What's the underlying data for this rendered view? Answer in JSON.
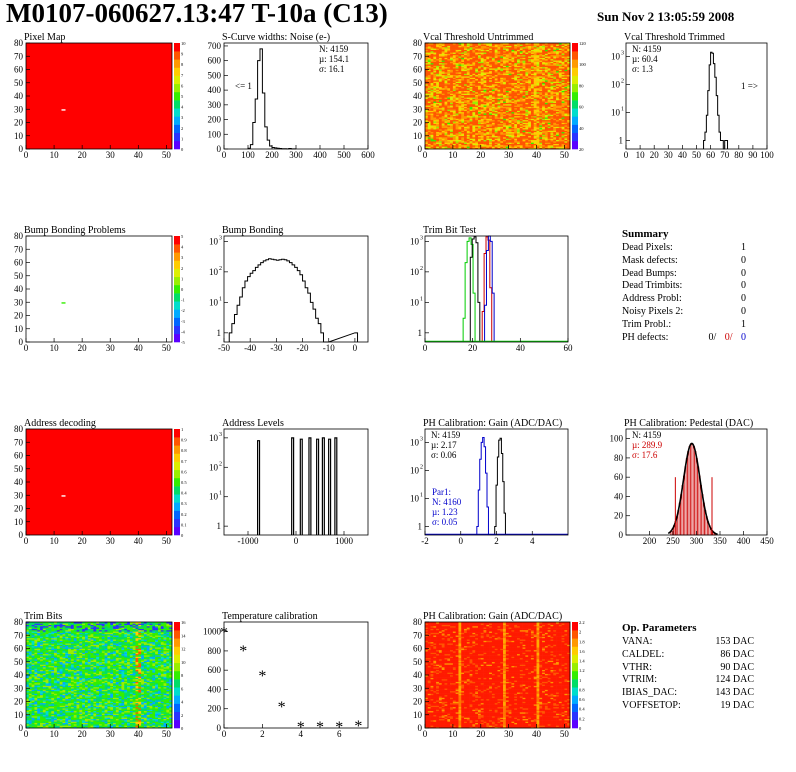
{
  "header": {
    "title": "M0107-060627.13:47 T-10a (C13)",
    "date": "Sun Nov  2 13:05:59 2008"
  },
  "colors": {
    "frame": "#000000",
    "red_text": "#cc0000",
    "blue_text": "#0000cc",
    "green_line": "#00cc00",
    "map_red": "#ff0000"
  },
  "chart_data": [
    {
      "id": "pixel_map",
      "type": "heatmap",
      "title": "Pixel Map",
      "xlim": [
        0,
        52
      ],
      "ylim": [
        0,
        80
      ],
      "xticks": [
        0,
        10,
        20,
        30,
        40,
        50
      ],
      "yticks": [
        0,
        10,
        20,
        30,
        40,
        50,
        60,
        70,
        80
      ],
      "colorbar_ticks": [
        0,
        1,
        2,
        3,
        4,
        5,
        6,
        7,
        8,
        9,
        10
      ],
      "fill_value": 10,
      "fill_color": "#ff0000",
      "special_pixels": [
        {
          "col": 13,
          "row": 29,
          "value": 0
        }
      ]
    },
    {
      "id": "scurve_widths",
      "type": "bar",
      "title": "S-Curve widths: Noise (e-)",
      "xlim": [
        0,
        600
      ],
      "ylim": [
        0,
        720
      ],
      "xticks": [
        0,
        100,
        200,
        300,
        400,
        500,
        600
      ],
      "yticks": [
        0,
        100,
        200,
        300,
        400,
        500,
        600,
        700
      ],
      "stats": {
        "N": "N: 4159",
        "mu": "µ: 154.1",
        "sigma": "σ: 16.1"
      },
      "underflow_label": "<= 1",
      "bin_width": 10,
      "bins_x": [
        100,
        110,
        120,
        130,
        140,
        150,
        160,
        170,
        180,
        190,
        200,
        210,
        220,
        230,
        240,
        250,
        260,
        270,
        280,
        290
      ],
      "bins_y": [
        5,
        30,
        180,
        340,
        600,
        680,
        380,
        150,
        60,
        20,
        10,
        8,
        5,
        3,
        2,
        2,
        1,
        3,
        1,
        1
      ]
    },
    {
      "id": "vcal_untrimmed",
      "type": "heatmap",
      "title": "Vcal Threshold Untrimmed",
      "xlim": [
        0,
        52
      ],
      "ylim": [
        0,
        80
      ],
      "xticks": [
        0,
        10,
        20,
        30,
        40,
        50
      ],
      "yticks": [
        0,
        10,
        20,
        30,
        40,
        50,
        60,
        70,
        80
      ],
      "colorbar_ticks": [
        20,
        40,
        60,
        80,
        100,
        120
      ],
      "description": "mostly orange-red with yellow and green spots, green stripe near column 40"
    },
    {
      "id": "vcal_trimmed",
      "type": "bar",
      "title": "Vcal Threshold Trimmed",
      "yscale": "log",
      "xlim": [
        0,
        100
      ],
      "ylim": [
        0.5,
        3000
      ],
      "xticks": [
        0,
        10,
        20,
        30,
        40,
        50,
        60,
        70,
        80,
        90,
        100
      ],
      "yticks": [
        1,
        10,
        100,
        1000
      ],
      "stats": {
        "N": "N: 4159",
        "mu": "µ: 60.4",
        "sigma": "σ:  1.3"
      },
      "overflow_label": "1 =>",
      "bin_width": 1,
      "bins_x": [
        55,
        56,
        57,
        58,
        59,
        60,
        61,
        62,
        63,
        64,
        65,
        66,
        67,
        68,
        69,
        70,
        71
      ],
      "bins_y": [
        1,
        2,
        8,
        60,
        500,
        1400,
        1300,
        550,
        180,
        40,
        8,
        2,
        1,
        1,
        0,
        1,
        1
      ]
    },
    {
      "id": "bump_bonding_problems",
      "type": "heatmap",
      "title": "Bump Bonding Problems",
      "xlim": [
        0,
        52
      ],
      "ylim": [
        0,
        80
      ],
      "xticks": [
        0,
        10,
        20,
        30,
        40,
        50
      ],
      "yticks": [
        0,
        10,
        20,
        30,
        40,
        50,
        60,
        70,
        80
      ],
      "colorbar_ticks": [
        -5,
        -4,
        -3,
        -2,
        -1,
        0,
        1,
        2,
        3,
        4,
        5
      ],
      "special_pixels": [
        {
          "col": 13,
          "row": 29,
          "value": 1
        }
      ]
    },
    {
      "id": "bump_bonding",
      "type": "bar",
      "title": "Bump Bonding",
      "yscale": "log",
      "xlim": [
        -50,
        5
      ],
      "ylim": [
        0.5,
        1500
      ],
      "xticks": [
        -50,
        -40,
        -30,
        -20,
        -10,
        0
      ],
      "yticks": [
        1,
        10,
        100,
        1000
      ],
      "bin_width": 1,
      "bins_x": [
        -48,
        -47,
        -46,
        -45,
        -44,
        -43,
        -42,
        -41,
        -40,
        -39,
        -38,
        -37,
        -36,
        -35,
        -34,
        -33,
        -32,
        -31,
        -30,
        -29,
        -28,
        -27,
        -26,
        -25,
        -24,
        -23,
        -22,
        -21,
        -20,
        -19,
        -18,
        -17,
        -16,
        -15,
        -14,
        -13,
        -12,
        -11,
        0
      ],
      "bins_y": [
        1,
        2,
        4,
        8,
        15,
        30,
        50,
        70,
        90,
        110,
        140,
        170,
        200,
        230,
        250,
        270,
        260,
        250,
        240,
        250,
        260,
        250,
        230,
        200,
        170,
        140,
        110,
        80,
        50,
        30,
        20,
        10,
        6,
        3,
        2,
        1,
        0,
        0,
        1
      ]
    },
    {
      "id": "trim_bit_test",
      "type": "bar",
      "title": "Trim Bit Test",
      "yscale": "log",
      "xlim": [
        0,
        60
      ],
      "ylim": [
        0.5,
        1500
      ],
      "xticks": [
        0,
        20,
        40,
        60
      ],
      "yticks": [
        1,
        10,
        100,
        1000
      ],
      "series": [
        {
          "color": "#00cc00",
          "x_range": [
            16,
            21
          ],
          "bins_y": [
            3,
            200,
            1000,
            1300,
            800,
            20
          ]
        },
        {
          "color": "#000000",
          "x_range": [
            19,
            23
          ],
          "bins_y": [
            300,
            1200,
            1400,
            900,
            10
          ]
        },
        {
          "color": "#cc0000",
          "x_range": [
            24,
            28
          ],
          "bins_y": [
            5,
            400,
            1400,
            1100,
            30
          ]
        },
        {
          "color": "#0000cc",
          "x_range": [
            25,
            29
          ],
          "bins_y": [
            8,
            500,
            1500,
            1000,
            20
          ]
        }
      ]
    },
    {
      "id": "address_decoding",
      "type": "heatmap",
      "title": "Address decoding",
      "xlim": [
        0,
        52
      ],
      "ylim": [
        0,
        80
      ],
      "xticks": [
        0,
        10,
        20,
        30,
        40,
        50
      ],
      "yticks": [
        0,
        10,
        20,
        30,
        40,
        50,
        60,
        70,
        80
      ],
      "colorbar_ticks": [
        0,
        0.1,
        0.2,
        0.3,
        0.4,
        0.5,
        0.6,
        0.7,
        0.8,
        0.9,
        1
      ],
      "fill_value": 1,
      "fill_color": "#ff0000",
      "special_pixels": [
        {
          "col": 13,
          "row": 29,
          "value": 0
        }
      ]
    },
    {
      "id": "address_levels",
      "type": "bar",
      "title": "Address Levels",
      "yscale": "log",
      "xlim": [
        -1500,
        1500
      ],
      "ylim": [
        0.5,
        2000
      ],
      "xticks": [
        -1000,
        0,
        1000
      ],
      "yticks": [
        1,
        10,
        100,
        1000
      ],
      "peaks_x": [
        -780,
        -70,
        110,
        290,
        450,
        570,
        700,
        830
      ],
      "peaks_y": [
        800,
        1000,
        900,
        1000,
        900,
        1000,
        900,
        1000
      ]
    },
    {
      "id": "ph_gain",
      "type": "bar",
      "title": "PH Calibration: Gain (ADC/DAC)",
      "yscale": "log",
      "xlim": [
        -2,
        6
      ],
      "ylim": [
        0.5,
        3000
      ],
      "xticks": [
        -2,
        0,
        2,
        4
      ],
      "yticks": [
        1,
        10,
        100,
        1000
      ],
      "stats": {
        "N": "N: 4159",
        "mu": "µ: 2.17",
        "sigma": "σ: 0.06"
      },
      "stats_par1": {
        "label": "Par1:",
        "N": "N: 4160",
        "mu": "µ: 1.23",
        "sigma": "σ: 0.05"
      },
      "series": [
        {
          "name": "",
          "color": "#000000",
          "x_range": [
            1.9,
            2.5
          ],
          "bins_y": [
            1,
            30,
            300,
            1200,
            1400,
            400,
            40,
            3
          ]
        },
        {
          "name": "",
          "color": "#0000cc",
          "x_range": [
            0.9,
            1.55
          ],
          "bins_y": [
            1,
            20,
            250,
            1000,
            1500,
            700,
            80,
            5
          ]
        }
      ]
    },
    {
      "id": "ph_pedestal",
      "type": "bar",
      "title": "PH Calibration: Pedestal (DAC)",
      "xlim": [
        150,
        450
      ],
      "ylim": [
        0,
        110
      ],
      "xticks": [
        200,
        250,
        300,
        350,
        400,
        450
      ],
      "yticks": [
        0,
        20,
        40,
        60,
        80,
        100
      ],
      "stats": {
        "N": "N: 4159",
        "mu": "µ: 289.9",
        "sigma": "σ: 17.6"
      },
      "fit_mu": 290,
      "fit_sigma": 17.6,
      "fit_amplitude": 95,
      "red_markers": [
        255,
        333
      ]
    },
    {
      "id": "trim_bits",
      "type": "heatmap",
      "title": "Trim Bits",
      "xlim": [
        0,
        52
      ],
      "ylim": [
        0,
        80
      ],
      "xticks": [
        0,
        10,
        20,
        30,
        40,
        50
      ],
      "yticks": [
        0,
        10,
        20,
        30,
        40,
        50,
        60,
        70,
        80
      ],
      "colorbar_ticks": [
        0,
        2,
        4,
        6,
        8,
        10,
        12,
        14,
        16
      ],
      "description": "mostly green and cyan with yellow/orange stripe near column 40"
    },
    {
      "id": "temperature_calibration",
      "type": "scatter",
      "title": "Temperature calibration",
      "xlim": [
        0,
        7.5
      ],
      "ylim": [
        0,
        1100
      ],
      "xticks": [
        0,
        2,
        4,
        6
      ],
      "yticks": [
        0,
        200,
        400,
        600,
        800,
        1000
      ],
      "x": [
        0,
        1,
        2,
        3,
        4,
        5,
        6,
        7
      ],
      "y": [
        1000,
        810,
        550,
        230,
        20,
        20,
        20,
        30
      ]
    },
    {
      "id": "ph_gain_map",
      "type": "heatmap",
      "title": "PH Calibration: Gain (ADC/DAC)",
      "xlim": [
        0,
        52
      ],
      "ylim": [
        0,
        80
      ],
      "xticks": [
        0,
        10,
        20,
        30,
        40,
        50
      ],
      "yticks": [
        0,
        10,
        20,
        30,
        40,
        50,
        60,
        70,
        80
      ],
      "colorbar_ticks": [
        0,
        0.2,
        0.4,
        0.6,
        0.8,
        1,
        1.2,
        1.4,
        1.6,
        1.8,
        2,
        2.2
      ],
      "description": "mostly red with orange stripes near columns 12, 28, 40"
    }
  ],
  "summary": {
    "title": "Summary",
    "rows": [
      {
        "label": "Dead Pixels:",
        "value": "1"
      },
      {
        "label": "Mask defects:",
        "value": "0"
      },
      {
        "label": "Dead Bumps:",
        "value": "0"
      },
      {
        "label": "Dead Trimbits:",
        "value": "0"
      },
      {
        "label": "Address Probl:",
        "value": "0"
      },
      {
        "label": "Noisy Pixels 2:",
        "value": "0"
      },
      {
        "label": "Trim Probl.:",
        "value": "1"
      }
    ],
    "ph_defects": {
      "label": "PH defects:",
      "v1": "0/",
      "v2": "0/",
      "v3": "0"
    }
  },
  "op_parameters": {
    "title": "Op. Parameters",
    "rows": [
      {
        "label": "VANA:",
        "value": "153 DAC"
      },
      {
        "label": "CALDEL:",
        "value": "86 DAC"
      },
      {
        "label": "VTHR:",
        "value": "90 DAC"
      },
      {
        "label": "VTRIM:",
        "value": "124 DAC"
      },
      {
        "label": "IBIAS_DAC:",
        "value": "143 DAC"
      },
      {
        "label": "VOFFSETOP:",
        "value": "19 DAC"
      }
    ]
  }
}
